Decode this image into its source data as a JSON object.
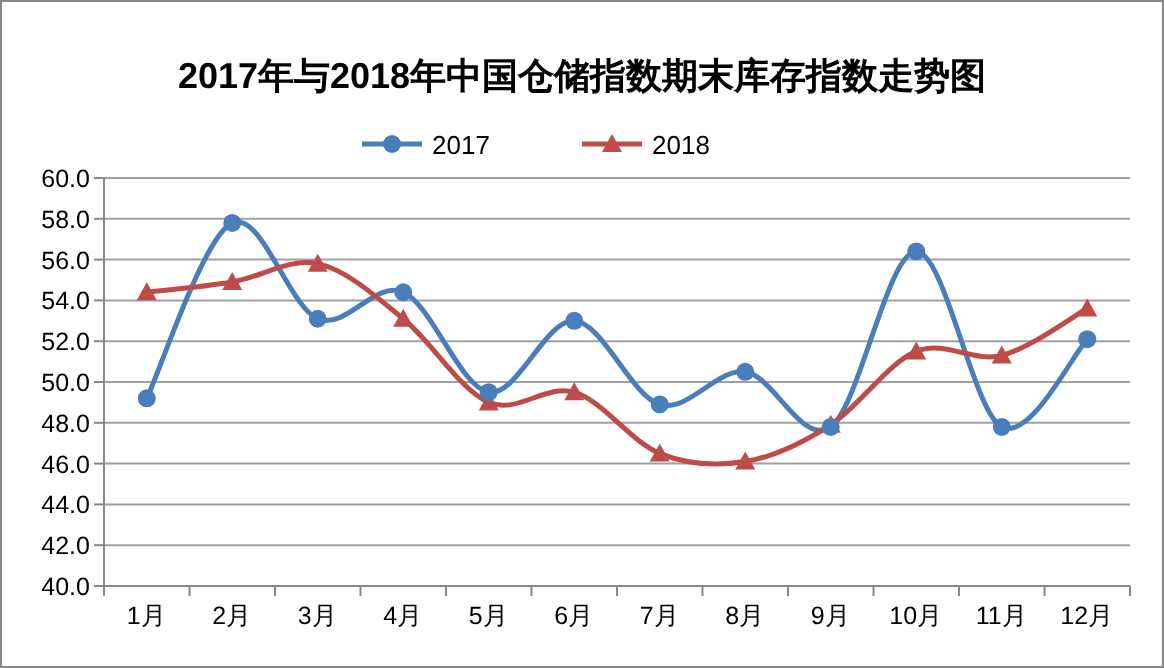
{
  "chart_data": {
    "type": "line",
    "title": "2017年与2018年中国仓储指数期末库存指数走势图",
    "categories": [
      "1月",
      "2月",
      "3月",
      "4月",
      "5月",
      "6月",
      "7月",
      "8月",
      "9月",
      "10月",
      "11月",
      "12月"
    ],
    "series": [
      {
        "name": "2017",
        "color": "#4a7ebb",
        "marker": "circle",
        "values": [
          49.2,
          57.8,
          53.1,
          54.4,
          49.5,
          53.0,
          48.9,
          50.5,
          47.8,
          56.4,
          47.8,
          52.1
        ]
      },
      {
        "name": "2018",
        "color": "#be4b48",
        "marker": "triangle",
        "values": [
          54.4,
          54.9,
          55.8,
          53.1,
          49.0,
          49.5,
          46.5,
          46.1,
          47.9,
          51.5,
          51.3,
          53.6
        ]
      }
    ],
    "ylim": [
      40,
      60
    ],
    "yticks": [
      {
        "value": 40,
        "label": "40.0"
      },
      {
        "value": 42,
        "label": "42.0"
      },
      {
        "value": 44,
        "label": "44.0"
      },
      {
        "value": 46,
        "label": "46.0"
      },
      {
        "value": 48,
        "label": "48.0"
      },
      {
        "value": 50,
        "label": "50.0"
      },
      {
        "value": 52,
        "label": "52.0"
      },
      {
        "value": 54,
        "label": "54.0"
      },
      {
        "value": 56,
        "label": "56.0"
      },
      {
        "value": 58,
        "label": "58.0"
      },
      {
        "value": 60,
        "label": "60.0"
      }
    ],
    "grid": "y",
    "legend": "top",
    "line_style": "solid"
  }
}
